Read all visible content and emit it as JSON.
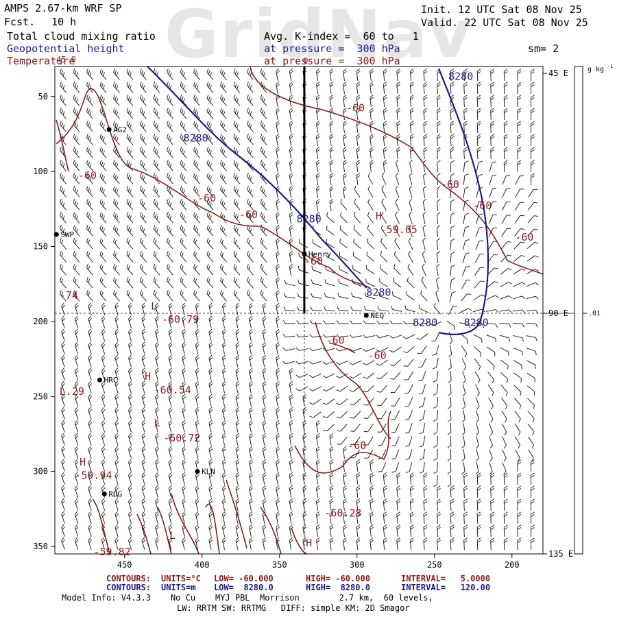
{
  "header": {
    "model": "AMPS 2.67-km WRF SP",
    "fcst_label": "Fcst.",
    "fcst_value": "10 h",
    "init": "Init. 12 UTC Sat 08 Nov 25",
    "valid": "Valid. 22 UTC Sat 08 Nov 25",
    "field1": "Total cloud mixing ratio",
    "field2": "Geopotential height",
    "field3": "Temperature",
    "avg_k": "Avg. K-index =  60 to   1",
    "pres1": "at pressure =  300 hPa",
    "pres2": "at pressure =  300 hPa",
    "sm": "sm= 2",
    "watermark": "GridNav",
    "top_tick": "0"
  },
  "axes": {
    "x_ticks": [
      "450",
      "400",
      "350",
      "300",
      "250",
      "200"
    ],
    "x_values": [
      450,
      400,
      350,
      300,
      250,
      200
    ],
    "x_range": [
      495,
      180
    ],
    "y_ticks": [
      "50",
      "100",
      "150",
      "200",
      "250",
      "300",
      "350"
    ],
    "y_values": [
      50,
      100,
      150,
      200,
      250,
      300,
      350
    ],
    "y_range": [
      30,
      355
    ],
    "right_labels": [
      "45 E",
      "90 E",
      "135 E"
    ],
    "right_values": [
      45,
      90,
      135
    ],
    "corner_label": "45 0",
    "colorbar_unit": "g kg",
    "colorbar_exp": "-1",
    "colorbar_value": ".01"
  },
  "stations": [
    {
      "name": "AG2",
      "x": 460,
      "y": 72
    },
    {
      "name": "SWP",
      "x": 494,
      "y": 142
    },
    {
      "name": "Henry",
      "x": 334,
      "y": 155
    },
    {
      "name": "NEQ",
      "x": 294,
      "y": 196
    },
    {
      "name": "HRC",
      "x": 466,
      "y": 239
    },
    {
      "name": "KLN",
      "x": 403,
      "y": 300
    },
    {
      "name": "RDG",
      "x": 463,
      "y": 315
    }
  ],
  "height_labels": [
    {
      "text": "8280",
      "x": 241,
      "y": 39
    },
    {
      "text": "8280",
      "x": 412,
      "y": 80
    },
    {
      "text": "8280",
      "x": 339,
      "y": 134
    },
    {
      "text": "8280",
      "x": 294,
      "y": 183
    },
    {
      "text": "8280",
      "x": 264,
      "y": 203
    },
    {
      "text": "8280",
      "x": 231,
      "y": 203
    }
  ],
  "temp_labels": [
    {
      "text": "-60",
      "x": 307,
      "y": 60
    },
    {
      "text": "-60",
      "x": 480,
      "y": 105
    },
    {
      "text": "-60",
      "x": 403,
      "y": 120
    },
    {
      "text": "-60",
      "x": 246,
      "y": 111
    },
    {
      "text": "-60",
      "x": 225,
      "y": 125
    },
    {
      "text": "-60",
      "x": 376,
      "y": 131
    },
    {
      "text": "-60",
      "x": 334,
      "y": 162
    },
    {
      "text": "-60",
      "x": 198,
      "y": 146
    },
    {
      "text": "-60",
      "x": 320,
      "y": 215
    },
    {
      "text": "-60",
      "x": 293,
      "y": 225
    },
    {
      "text": "-60",
      "x": 306,
      "y": 285
    },
    {
      "text": "H",
      "x": 288,
      "y": 132
    },
    {
      "text": "-59.05",
      "x": 285,
      "y": 141
    },
    {
      "text": "-74",
      "x": 492,
      "y": 185
    },
    {
      "text": "L",
      "x": 433,
      "y": 192
    },
    {
      "text": "-60.79",
      "x": 426,
      "y": 201
    },
    {
      "text": "H",
      "x": 437,
      "y": 239
    },
    {
      "text": "-60.54",
      "x": 431,
      "y": 248
    },
    {
      "text": "L.29",
      "x": 492,
      "y": 249
    },
    {
      "text": "L",
      "x": 431,
      "y": 270
    },
    {
      "text": "-60.72",
      "x": 425,
      "y": 280
    },
    {
      "text": "H",
      "x": 479,
      "y": 296
    },
    {
      "text": "-59.94",
      "x": 482,
      "y": 305
    },
    {
      "text": "-60.28",
      "x": 321,
      "y": 330
    },
    {
      "text": "L",
      "x": 421,
      "y": 345
    },
    {
      "text": "H",
      "x": 333,
      "y": 350
    },
    {
      "text": "-59.82",
      "x": 470,
      "y": 356
    }
  ],
  "footer": {
    "c1_title": "CONTOURS:",
    "c1_units": "UNITS=°C",
    "c1_low": "LOW= -60.000",
    "c1_high": "HIGH= -60.000",
    "c1_int": "INTERVAL=   5.0000",
    "c2_title": "CONTOURS:",
    "c2_units": "UNITS=m",
    "c2_low": "LOW=  8280.0",
    "c2_high": "HIGH=  8280.0",
    "c2_int": "INTERVAL=   120.00",
    "model_info": "Model Info: V4.3.3    No Cu    MYJ PBL  Morrison        2.7 km,  60 levels,",
    "model_info2": "LW: RRTM SW: RRTMG   DIFF: simple KM: 2D Smagor"
  },
  "colors": {
    "height_contour": "#1a1a8c",
    "temp_contour": "#8b1a1a",
    "barb": "#222222"
  }
}
